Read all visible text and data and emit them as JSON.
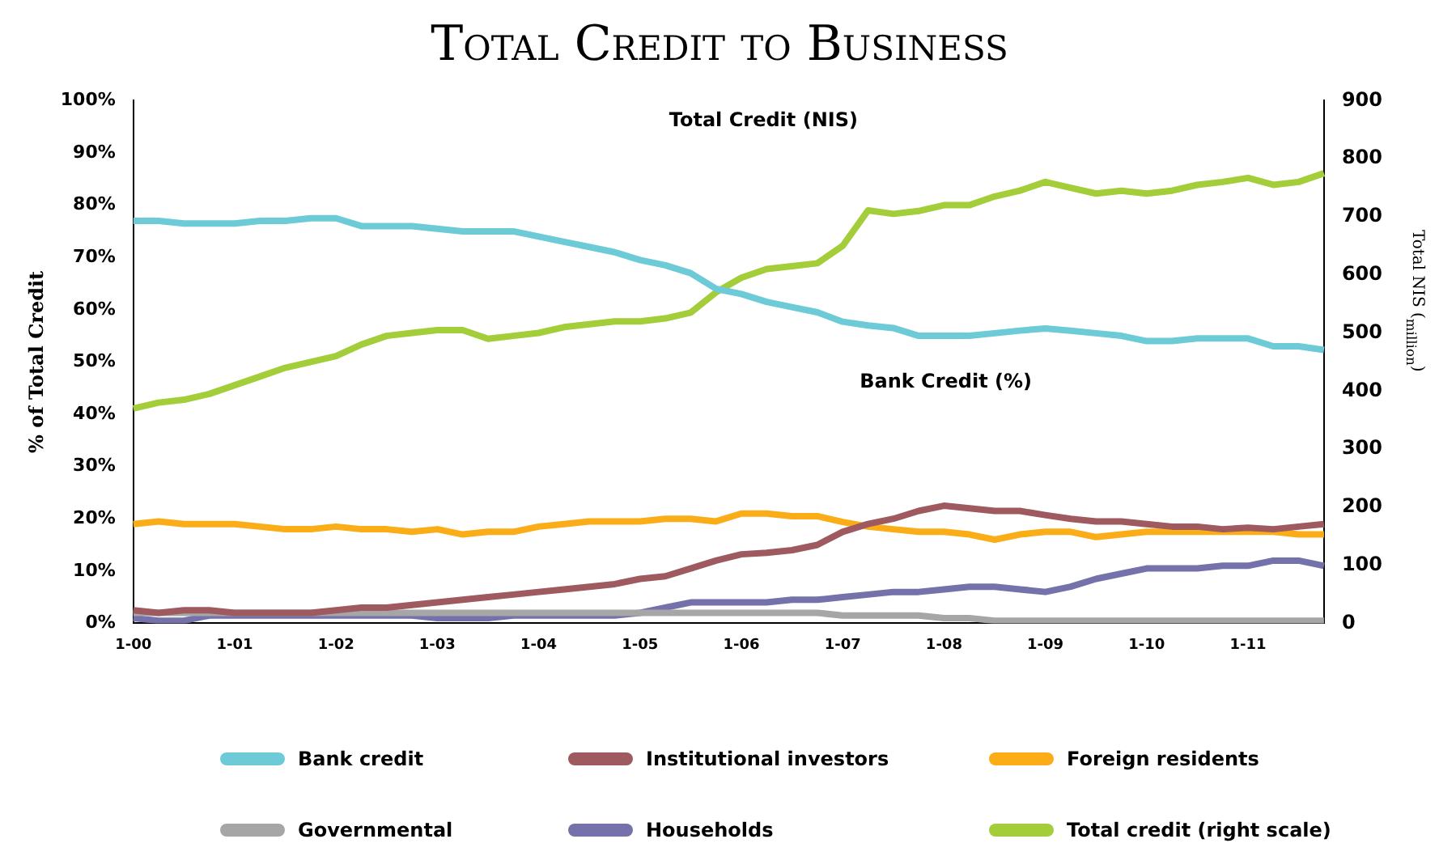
{
  "chart_data": {
    "type": "line",
    "title": "Total Credit to Business",
    "ylabel": "% of Total Credit",
    "y2label": "Total NIS ($_{million}$)",
    "categories": [
      "1-00",
      null,
      null,
      null,
      "1-01",
      null,
      null,
      null,
      "1-02",
      null,
      null,
      null,
      "1-03",
      null,
      null,
      null,
      "1-04",
      null,
      null,
      null,
      "1-05",
      null,
      null,
      null,
      "1-06",
      null,
      null,
      null,
      "1-07",
      null,
      null,
      null,
      "1-08",
      null,
      null,
      null,
      "1-09",
      null,
      null,
      null,
      "1-10",
      null,
      null,
      null,
      "1-11",
      null,
      null,
      null
    ],
    "series": [
      {
        "name": "Bank credit",
        "color": "#6ccbd6",
        "values": [
          77,
          77,
          76.5,
          76.5,
          76.5,
          77,
          77,
          77.5,
          77.5,
          76,
          76,
          76,
          75.5,
          75,
          75,
          75,
          74,
          73,
          72,
          71,
          69.5,
          68.5,
          67,
          64,
          63,
          61.5,
          60.5,
          59.5,
          57.7,
          57,
          56.5,
          55,
          55,
          55,
          55.5,
          56,
          56.4,
          56,
          55.5,
          55,
          54,
          54,
          54.5,
          54.5,
          54.5,
          53,
          53,
          52.3
        ]
      },
      {
        "name": "Institutional investors",
        "color": "#9e5a5e",
        "values": [
          2.5,
          2,
          2.5,
          2.5,
          2,
          2,
          2,
          2,
          2.5,
          3,
          3,
          3.5,
          4,
          4.5,
          5,
          5.5,
          6,
          6.5,
          7,
          7.5,
          8.5,
          9,
          10.5,
          12,
          13.2,
          13.5,
          14,
          15,
          17.5,
          19,
          20,
          21.5,
          22.5,
          22,
          21.5,
          21.5,
          20.7,
          20,
          19.5,
          19.5,
          19,
          18.5,
          18.5,
          18,
          18.3,
          18,
          18.5,
          19
        ]
      },
      {
        "name": "Foreign residents",
        "color": "#fbad18",
        "values": [
          19,
          19.5,
          19,
          19,
          19,
          18.5,
          18,
          18,
          18.5,
          18,
          18,
          17.5,
          18,
          17,
          17.5,
          17.5,
          18.5,
          19,
          19.5,
          19.5,
          19.5,
          20,
          20,
          19.5,
          21,
          21,
          20.5,
          20.5,
          19.4,
          18.5,
          18,
          17.5,
          17.5,
          17,
          16,
          17,
          17.5,
          17.5,
          16.5,
          17,
          17.5,
          17.5,
          17.5,
          17.5,
          17.5,
          17.5,
          17,
          17
        ]
      },
      {
        "name": "Governmental",
        "color": "#a6a6a6",
        "values": [
          2,
          2,
          2,
          2,
          2,
          2,
          2,
          2,
          2,
          2,
          2,
          2,
          2,
          2,
          2,
          2,
          2,
          2,
          2,
          2,
          2,
          2,
          2,
          2,
          2,
          2,
          2,
          2,
          1.5,
          1.5,
          1.5,
          1.5,
          1,
          1,
          0.5,
          0.5,
          0.5,
          0.5,
          0.5,
          0.5,
          0.5,
          0.5,
          0.5,
          0.5,
          0.5,
          0.5,
          0.5,
          0.5
        ]
      },
      {
        "name": "Households",
        "color": "#7471ab",
        "values": [
          1,
          0.5,
          0.5,
          1.5,
          1.5,
          1.5,
          1.5,
          1.5,
          1.5,
          1.5,
          1.5,
          1.5,
          1,
          1,
          1,
          1.5,
          1.5,
          1.5,
          1.5,
          1.5,
          2,
          3,
          4,
          4,
          4,
          4,
          4.5,
          4.5,
          5,
          5.5,
          6,
          6,
          6.5,
          7,
          7,
          6.5,
          6,
          7,
          8.5,
          9.5,
          10.5,
          10.5,
          10.5,
          11,
          11,
          12,
          12,
          11
        ]
      },
      {
        "name": "Total credit (right scale)",
        "color": "#a3cd39",
        "axis": "y2",
        "values": [
          370,
          380,
          385,
          395,
          410,
          425,
          440,
          450,
          460,
          480,
          495,
          500,
          505,
          505,
          490,
          495,
          500,
          510,
          515,
          520,
          520,
          525,
          535,
          570,
          595,
          610,
          615,
          620,
          650,
          711,
          705,
          710,
          720,
          720,
          735,
          745,
          760,
          750,
          740,
          745,
          740,
          745,
          755,
          760,
          767,
          755,
          760,
          775
        ]
      }
    ],
    "ylim": [
      0,
      100
    ],
    "yticks": [
      {
        "value": 0,
        "label": "0%"
      },
      {
        "value": 10,
        "label": "10%"
      },
      {
        "value": 20,
        "label": "20%"
      },
      {
        "value": 30,
        "label": "30%"
      },
      {
        "value": 40,
        "label": "40%"
      },
      {
        "value": 50,
        "label": "50%"
      },
      {
        "value": 60,
        "label": "60%"
      },
      {
        "value": 70,
        "label": "70%"
      },
      {
        "value": 80,
        "label": "80%"
      },
      {
        "value": 90,
        "label": "90%"
      },
      {
        "value": 100,
        "label": "100%"
      }
    ],
    "y2lim": [
      0,
      900
    ],
    "y2ticks": [
      0,
      100,
      200,
      300,
      400,
      500,
      600,
      700,
      800,
      900
    ],
    "annotations": [
      "Total Credit (NIS)",
      "Bank Credit (%)"
    ],
    "grid": false,
    "legend": "bottom",
    "marker": "none",
    "line_style": "solid"
  }
}
